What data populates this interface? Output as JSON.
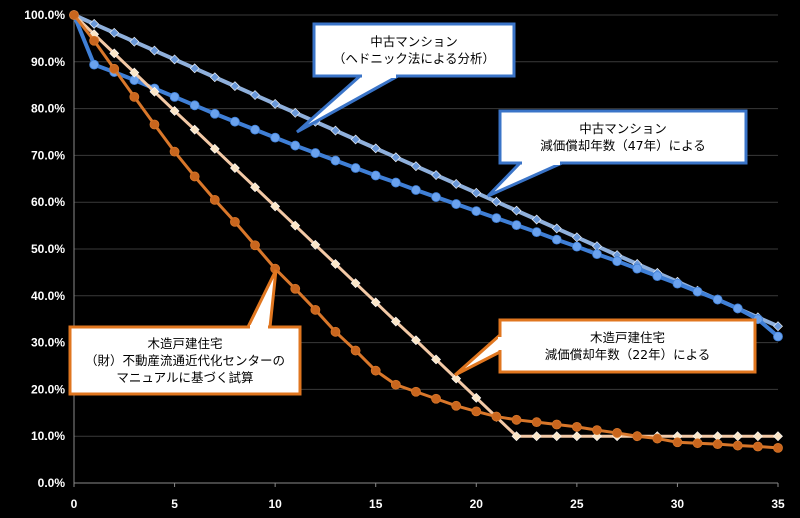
{
  "colors": {
    "background": "#000000",
    "grid": "#3a3a3a",
    "mansion_hedonic": "#3f7fd6",
    "mansion_hedonic_marker": "#6aa2ee",
    "mansion_depr": "#8fb0dc",
    "mansion_depr_marker": "#6a98d8",
    "wood_market": "#d9772a",
    "wood_market_marker": "#c9661e",
    "wood_depr": "#f3c9a6",
    "wood_depr_marker": "#fbe6c8",
    "callout_blue_border": "#3a74c8",
    "callout_orange_border": "#e0761f"
  },
  "chart_data": {
    "type": "line",
    "xlim": [
      0,
      35
    ],
    "ylim": [
      0,
      100
    ],
    "grid": true,
    "x_ticks": [
      0,
      5,
      10,
      15,
      20,
      25,
      30,
      35
    ],
    "x_tick_labels": [
      "0",
      "5",
      "10",
      "15",
      "20",
      "25",
      "30",
      "35"
    ],
    "y_ticks": [
      0,
      10,
      20,
      30,
      40,
      50,
      60,
      70,
      80,
      90,
      100
    ],
    "y_tick_labels": [
      "0.0%",
      "10.0%",
      "20.0%",
      "30.0%",
      "40.0%",
      "50.0%",
      "60.0%",
      "70.0%",
      "80.0%",
      "90.0%",
      "100.0%"
    ],
    "x": [
      0,
      1,
      2,
      3,
      4,
      5,
      6,
      7,
      8,
      9,
      10,
      11,
      12,
      13,
      14,
      15,
      16,
      17,
      18,
      19,
      20,
      21,
      22,
      23,
      24,
      25,
      26,
      27,
      28,
      29,
      30,
      31,
      32,
      33,
      34,
      35
    ],
    "series": [
      {
        "key": "mansion_depr",
        "marker": "diamond",
        "values": [
          100,
          98.1,
          96.2,
          94.3,
          92.4,
          90.5,
          88.6,
          86.7,
          84.8,
          82.9,
          81.0,
          79.1,
          77.2,
          75.3,
          73.4,
          71.5,
          69.6,
          67.7,
          65.8,
          63.9,
          62.0,
          60.1,
          58.2,
          56.3,
          54.4,
          52.5,
          50.6,
          48.7,
          46.8,
          44.9,
          43.0,
          41.1,
          39.2,
          37.3,
          35.4,
          33.5
        ]
      },
      {
        "key": "mansion_hedonic",
        "marker": "circle",
        "values": [
          100,
          89.4,
          87.8,
          86.1,
          84.3,
          82.5,
          80.7,
          78.9,
          77.2,
          75.5,
          73.8,
          72.1,
          70.5,
          68.9,
          67.3,
          65.7,
          64.2,
          62.6,
          61.1,
          59.6,
          58.1,
          56.6,
          55.1,
          53.6,
          52.0,
          50.5,
          48.9,
          47.4,
          45.8,
          44.2,
          42.6,
          40.9,
          39.2,
          37.3,
          35.0,
          31.3
        ]
      },
      {
        "key": "wood_depr",
        "marker": "diamond",
        "values": [
          100,
          95.9,
          91.8,
          87.7,
          83.6,
          79.5,
          75.5,
          71.4,
          67.3,
          63.2,
          59.1,
          55.0,
          50.9,
          46.8,
          42.7,
          38.6,
          34.5,
          30.5,
          26.4,
          22.3,
          18.2,
          14.1,
          10.0,
          10.0,
          10.0,
          10.0,
          10.0,
          10.0,
          10.0,
          10.0,
          10.0,
          10.0,
          10.0,
          10.0,
          10.0,
          10.0
        ]
      },
      {
        "key": "wood_market",
        "marker": "circle",
        "values": [
          100,
          94.5,
          88.5,
          82.5,
          76.6,
          70.8,
          65.5,
          60.5,
          55.8,
          50.8,
          45.8,
          41.5,
          37.0,
          32.3,
          28.3,
          24.0,
          21.0,
          19.5,
          18.0,
          16.5,
          15.3,
          14.2,
          13.5,
          13.0,
          12.5,
          12.0,
          11.3,
          10.7,
          10.0,
          9.5,
          8.7,
          8.5,
          8.3,
          8.0,
          7.8,
          7.5
        ]
      }
    ]
  },
  "callouts": [
    {
      "key": "mansion_hedonic",
      "lines": [
        "中古マンション",
        "（ヘドニック法による分析）"
      ]
    },
    {
      "key": "mansion_depr",
      "lines": [
        "中古マンション",
        "減価償却年数（47年）による"
      ]
    },
    {
      "key": "wood_market",
      "lines": [
        "木造戸建住宅",
        "（財）不動産流通近代化センターの",
        "マニュアルに基づく試算"
      ]
    },
    {
      "key": "wood_depr",
      "lines": [
        "木造戸建住宅",
        "減価償却年数（22年）による"
      ]
    }
  ]
}
